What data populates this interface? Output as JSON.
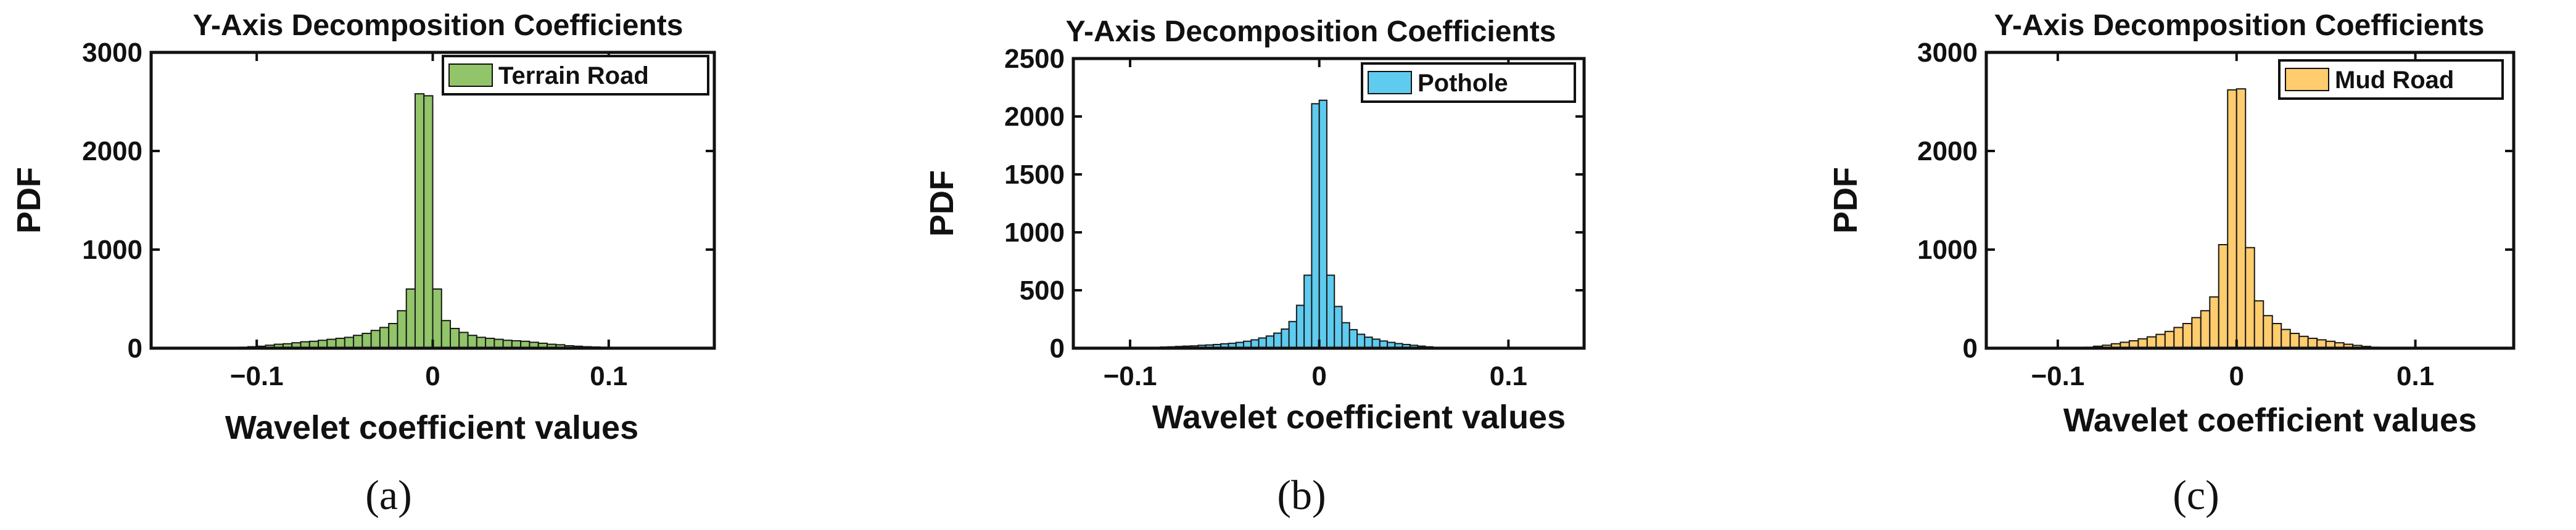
{
  "chart_data": [
    {
      "type": "bar",
      "panel_label": "(a)",
      "title": "Y-Axis Decomposition Coefficients",
      "xlabel": "Wavelet coefficient values",
      "ylabel": "PDF",
      "xlim": [
        -0.16,
        0.16
      ],
      "ylim": [
        0,
        3000
      ],
      "xticks": [
        -0.1,
        0,
        0.1
      ],
      "xtick_labels": [
        "−0.1",
        "0",
        "0.1"
      ],
      "yticks": [
        0,
        1000,
        2000,
        3000
      ],
      "ytick_labels": [
        "0",
        "1000",
        "2000",
        "3000"
      ],
      "legend": "Terrain Road",
      "legend_position": "top-right",
      "color": "#92c46a",
      "bin_width": 0.005,
      "bin_centers": [
        -0.1175,
        -0.1125,
        -0.1075,
        -0.1025,
        -0.0975,
        -0.0925,
        -0.0875,
        -0.0825,
        -0.0775,
        -0.0725,
        -0.0675,
        -0.0625,
        -0.0575,
        -0.0525,
        -0.0475,
        -0.0425,
        -0.0375,
        -0.0325,
        -0.0275,
        -0.0225,
        -0.0175,
        -0.0125,
        -0.0075,
        -0.0025,
        0.0025,
        0.0075,
        0.0125,
        0.0175,
        0.0225,
        0.0275,
        0.0325,
        0.0375,
        0.0425,
        0.0475,
        0.0525,
        0.0575,
        0.0625,
        0.0675,
        0.0725,
        0.0775,
        0.0825,
        0.0875,
        0.0925,
        0.0975,
        0.1025,
        0.1075,
        0.1125,
        0.1175
      ],
      "values": [
        5,
        8,
        10,
        15,
        20,
        30,
        40,
        45,
        55,
        65,
        70,
        80,
        90,
        100,
        110,
        130,
        150,
        180,
        210,
        250,
        380,
        600,
        2580,
        2560,
        600,
        280,
        200,
        160,
        130,
        110,
        100,
        90,
        80,
        75,
        70,
        60,
        50,
        40,
        35,
        25,
        20,
        15,
        12,
        10,
        8,
        5,
        3,
        2
      ]
    },
    {
      "type": "bar",
      "panel_label": "(b)",
      "title": "Y-Axis Decomposition Coefficients",
      "xlabel": "Wavelet coefficient values",
      "ylabel": "PDF",
      "xlim": [
        -0.13,
        0.14
      ],
      "ylim": [
        0,
        2500
      ],
      "xticks": [
        -0.1,
        0,
        0.1
      ],
      "xtick_labels": [
        "−0.1",
        "0",
        "0.1"
      ],
      "yticks": [
        0,
        500,
        1000,
        1500,
        2000,
        2500
      ],
      "ytick_labels": [
        "0",
        "500",
        "1000",
        "1500",
        "2000",
        "2500"
      ],
      "legend": "Pothole",
      "legend_position": "top-right",
      "color": "#5ecbef",
      "bin_width": 0.004,
      "bin_centers": [
        -0.094,
        -0.09,
        -0.086,
        -0.082,
        -0.078,
        -0.074,
        -0.07,
        -0.066,
        -0.062,
        -0.058,
        -0.054,
        -0.05,
        -0.046,
        -0.042,
        -0.038,
        -0.034,
        -0.03,
        -0.026,
        -0.022,
        -0.018,
        -0.014,
        -0.01,
        -0.006,
        -0.002,
        0.002,
        0.006,
        0.01,
        0.014,
        0.018,
        0.022,
        0.026,
        0.03,
        0.034,
        0.038,
        0.042,
        0.046,
        0.05,
        0.054,
        0.058,
        0.062,
        0.066,
        0.07,
        0.074,
        0.078
      ],
      "values": [
        3,
        5,
        8,
        10,
        12,
        15,
        18,
        20,
        25,
        28,
        32,
        38,
        42,
        50,
        60,
        72,
        88,
        105,
        130,
        165,
        230,
        370,
        630,
        2110,
        2140,
        630,
        360,
        220,
        160,
        120,
        95,
        78,
        62,
        50,
        40,
        32,
        25,
        18,
        12,
        8,
        5,
        4,
        3,
        2
      ]
    },
    {
      "type": "bar",
      "panel_label": "(c)",
      "title": "Y-Axis Decomposition Coefficients",
      "xlabel": "Wavelet coefficient values",
      "ylabel": "PDF",
      "xlim": [
        -0.14,
        0.155
      ],
      "ylim": [
        0,
        3000
      ],
      "xticks": [
        -0.1,
        0,
        0.1
      ],
      "xtick_labels": [
        "−0.1",
        "0",
        "0.1"
      ],
      "yticks": [
        0,
        1000,
        2000,
        3000
      ],
      "ytick_labels": [
        "0",
        "1000",
        "2000",
        "3000"
      ],
      "legend": "Mud Road",
      "legend_position": "top-right",
      "color": "#ffcc6e",
      "bin_width": 0.005,
      "bin_centers": [
        -0.0875,
        -0.0825,
        -0.0775,
        -0.0725,
        -0.0675,
        -0.0625,
        -0.0575,
        -0.0525,
        -0.0475,
        -0.0425,
        -0.0375,
        -0.0325,
        -0.0275,
        -0.0225,
        -0.0175,
        -0.0125,
        -0.0075,
        -0.0025,
        0.0025,
        0.0075,
        0.0125,
        0.0175,
        0.0225,
        0.0275,
        0.0325,
        0.0375,
        0.0425,
        0.0475,
        0.0525,
        0.0575,
        0.0625,
        0.0675,
        0.0725,
        0.0775,
        0.0825
      ],
      "values": [
        5,
        10,
        20,
        30,
        45,
        60,
        75,
        95,
        115,
        140,
        170,
        210,
        250,
        310,
        380,
        520,
        1050,
        2620,
        2630,
        1020,
        480,
        330,
        250,
        190,
        150,
        120,
        100,
        85,
        70,
        55,
        40,
        28,
        18,
        10,
        5
      ]
    }
  ]
}
